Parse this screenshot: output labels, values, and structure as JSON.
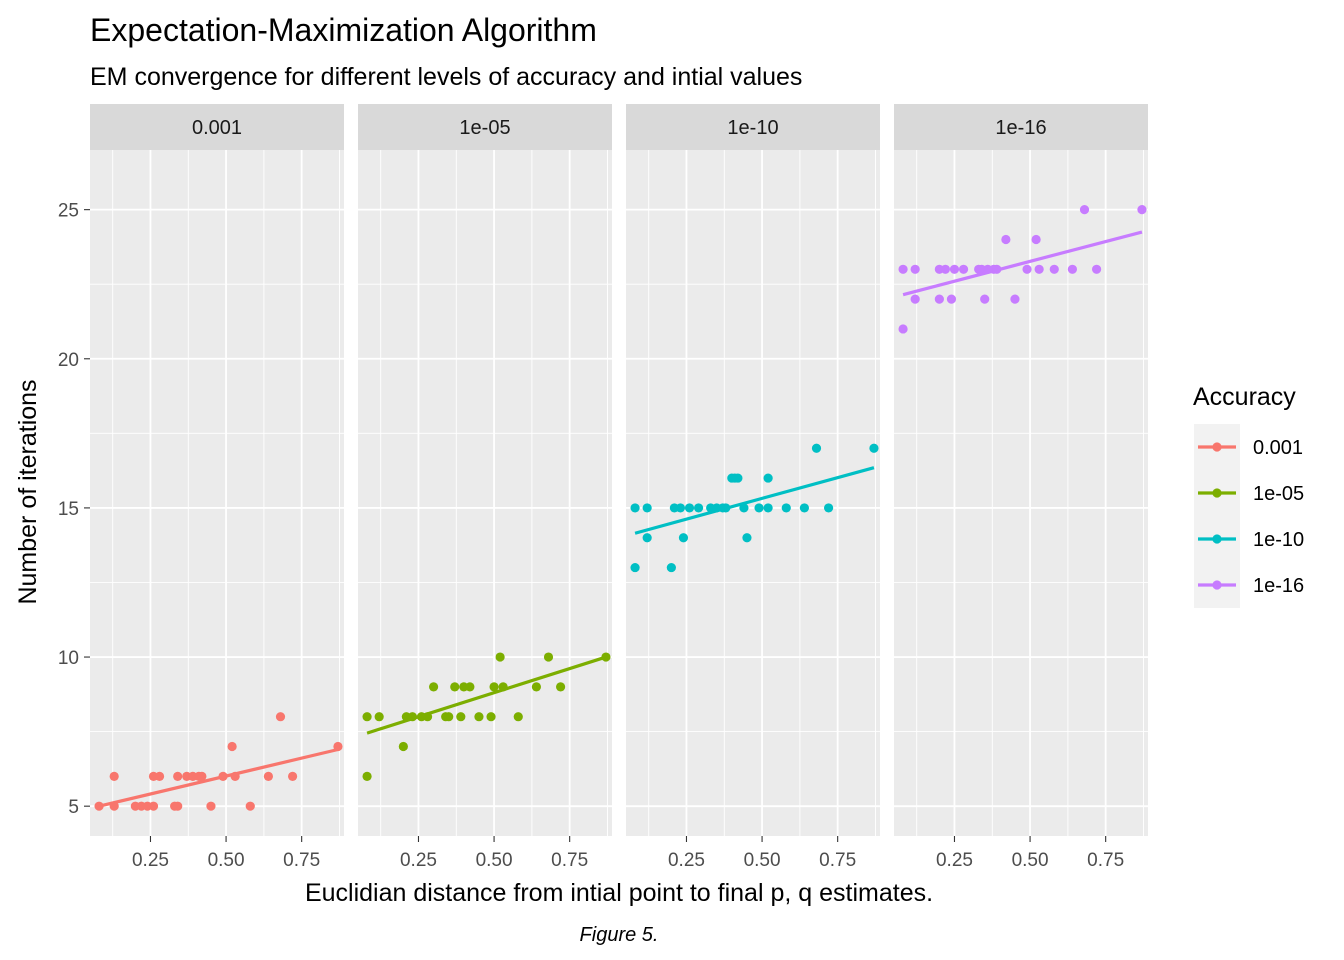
{
  "chart_data": {
    "type": "scatter",
    "title": "Expectation-Maximization Algorithm",
    "subtitle": "EM convergence for different levels of accuracy and intial values",
    "xlabel": "Euclidian distance from intial point to final p, q estimates.",
    "ylabel": "Number of iterations",
    "caption": "Figure 5.",
    "xlim": [
      0.05,
      0.89
    ],
    "ylim": [
      4,
      27
    ],
    "x_ticks": [
      "0.25",
      "0.50",
      "0.75"
    ],
    "x_tick_values": [
      0.25,
      0.5,
      0.75
    ],
    "y_ticks": [
      "5",
      "10",
      "15",
      "20",
      "25"
    ],
    "y_tick_values": [
      5,
      10,
      15,
      20,
      25
    ],
    "grid": true,
    "legend": {
      "title": "Accuracy",
      "placement": "right",
      "entries": [
        "0.001",
        "1e-05",
        "1e-10",
        "1e-16"
      ]
    },
    "facets": [
      {
        "label": "0.001",
        "color": "#F8766D",
        "fit": [
          [
            0.08,
            5.0
          ],
          [
            0.87,
            6.9
          ]
        ],
        "points": [
          [
            0.08,
            5
          ],
          [
            0.13,
            5
          ],
          [
            0.13,
            6
          ],
          [
            0.2,
            5
          ],
          [
            0.22,
            5
          ],
          [
            0.24,
            5
          ],
          [
            0.26,
            5
          ],
          [
            0.26,
            6
          ],
          [
            0.28,
            6
          ],
          [
            0.33,
            5
          ],
          [
            0.34,
            5
          ],
          [
            0.34,
            6
          ],
          [
            0.37,
            6
          ],
          [
            0.39,
            6
          ],
          [
            0.41,
            6
          ],
          [
            0.42,
            6
          ],
          [
            0.45,
            5
          ],
          [
            0.49,
            6
          ],
          [
            0.52,
            7
          ],
          [
            0.53,
            6
          ],
          [
            0.58,
            5
          ],
          [
            0.64,
            6
          ],
          [
            0.68,
            8
          ],
          [
            0.72,
            6
          ],
          [
            0.87,
            7
          ]
        ]
      },
      {
        "label": "1e-05",
        "color": "#7CAE00",
        "fit": [
          [
            0.08,
            7.45
          ],
          [
            0.87,
            10.0
          ]
        ],
        "points": [
          [
            0.08,
            6
          ],
          [
            0.08,
            8
          ],
          [
            0.12,
            8
          ],
          [
            0.2,
            7
          ],
          [
            0.21,
            8
          ],
          [
            0.23,
            8
          ],
          [
            0.26,
            8
          ],
          [
            0.28,
            8
          ],
          [
            0.3,
            9
          ],
          [
            0.34,
            8
          ],
          [
            0.35,
            8
          ],
          [
            0.37,
            9
          ],
          [
            0.39,
            8
          ],
          [
            0.4,
            9
          ],
          [
            0.42,
            9
          ],
          [
            0.45,
            8
          ],
          [
            0.49,
            8
          ],
          [
            0.5,
            9
          ],
          [
            0.52,
            10
          ],
          [
            0.53,
            9
          ],
          [
            0.58,
            8
          ],
          [
            0.64,
            9
          ],
          [
            0.68,
            10
          ],
          [
            0.72,
            9
          ],
          [
            0.87,
            10
          ]
        ]
      },
      {
        "label": "1e-10",
        "color": "#00BFC4",
        "fit": [
          [
            0.08,
            14.15
          ],
          [
            0.87,
            16.35
          ]
        ],
        "points": [
          [
            0.08,
            13
          ],
          [
            0.08,
            15
          ],
          [
            0.12,
            14
          ],
          [
            0.12,
            15
          ],
          [
            0.2,
            13
          ],
          [
            0.21,
            15
          ],
          [
            0.23,
            15
          ],
          [
            0.24,
            14
          ],
          [
            0.26,
            15
          ],
          [
            0.29,
            15
          ],
          [
            0.33,
            15
          ],
          [
            0.35,
            15
          ],
          [
            0.37,
            15
          ],
          [
            0.38,
            15
          ],
          [
            0.4,
            16
          ],
          [
            0.41,
            16
          ],
          [
            0.42,
            16
          ],
          [
            0.44,
            15
          ],
          [
            0.45,
            14
          ],
          [
            0.49,
            15
          ],
          [
            0.52,
            16
          ],
          [
            0.52,
            15
          ],
          [
            0.58,
            15
          ],
          [
            0.64,
            15
          ],
          [
            0.68,
            17
          ],
          [
            0.72,
            15
          ],
          [
            0.87,
            17
          ]
        ]
      },
      {
        "label": "1e-16",
        "color": "#C77CFF",
        "fit": [
          [
            0.08,
            22.15
          ],
          [
            0.87,
            24.25
          ]
        ],
        "points": [
          [
            0.08,
            21
          ],
          [
            0.08,
            23
          ],
          [
            0.12,
            22
          ],
          [
            0.12,
            23
          ],
          [
            0.2,
            22
          ],
          [
            0.2,
            23
          ],
          [
            0.22,
            23
          ],
          [
            0.24,
            22
          ],
          [
            0.25,
            23
          ],
          [
            0.28,
            23
          ],
          [
            0.33,
            23
          ],
          [
            0.34,
            23
          ],
          [
            0.35,
            22
          ],
          [
            0.36,
            23
          ],
          [
            0.38,
            23
          ],
          [
            0.39,
            23
          ],
          [
            0.42,
            24
          ],
          [
            0.45,
            22
          ],
          [
            0.49,
            23
          ],
          [
            0.52,
            24
          ],
          [
            0.53,
            23
          ],
          [
            0.58,
            23
          ],
          [
            0.64,
            23
          ],
          [
            0.68,
            25
          ],
          [
            0.72,
            23
          ],
          [
            0.87,
            25
          ]
        ]
      }
    ]
  }
}
